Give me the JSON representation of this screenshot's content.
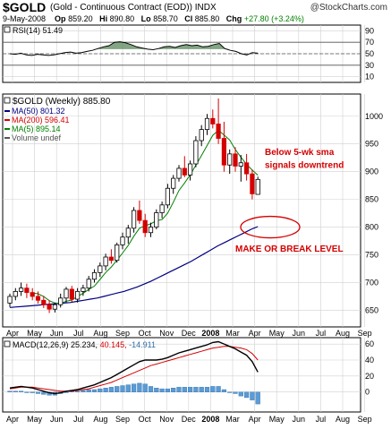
{
  "header": {
    "symbol": "$GOLD",
    "name": "(Gold - Continuous Contract (EOD))",
    "exchange": "INDX",
    "watermark": "@StockCharts.com",
    "date": "9-May-2008",
    "open_label": "Op",
    "open": "859.20",
    "high_label": "Hi",
    "high": "890.80",
    "low_label": "Lo",
    "low": "858.70",
    "close_label": "Cl",
    "close": "885.80",
    "change_label": "Chg",
    "change": "+27.80 (+3.24%)"
  },
  "colors": {
    "up": "#ffffff",
    "down": "#d40000",
    "ma50": "#000080",
    "ma200": "#d40000",
    "ma5": "#008000",
    "rsi_fill": "#4f7f4f",
    "macd_hist": "#5b9bd5",
    "annotation": "#d40000",
    "grid": "#d0d0d0"
  },
  "chart_data": [
    {
      "type": "line",
      "panel": "rsi",
      "legend": "RSI(14) 51.49",
      "y_ticks": [
        10,
        30,
        50,
        70,
        90
      ],
      "ylim": [
        0,
        100
      ],
      "reference_lines": [
        30,
        50,
        70
      ],
      "values": [
        50,
        49,
        51,
        48,
        47,
        49,
        48,
        47,
        48,
        50,
        52,
        53,
        51,
        52,
        54,
        56,
        59,
        62,
        64,
        70,
        71,
        69,
        66,
        62,
        60,
        58,
        57,
        59,
        62,
        63,
        61,
        64,
        66,
        64,
        65,
        62,
        63,
        66,
        68,
        59,
        56,
        54,
        50,
        48,
        52,
        51
      ]
    },
    {
      "type": "candlestick",
      "panel": "price",
      "legend": {
        "title": "$GOLD (Weekly) 885.80",
        "ma50": "MA(50) 801.32",
        "ma200": "MA(200) 596.41",
        "ma5": "MA(5) 895.14",
        "volume": "Volume undef"
      },
      "x_labels": [
        "Apr",
        "May",
        "Jun",
        "Jul",
        "Aug",
        "Sep",
        "Oct",
        "Nov",
        "Dec",
        "2008",
        "Mar",
        "Apr",
        "May",
        "Jun",
        "Jul",
        "Aug",
        "Sep"
      ],
      "y_ticks": [
        650,
        700,
        750,
        800,
        850,
        900,
        950,
        1000
      ],
      "ylim": [
        620,
        1040
      ],
      "ohlc": [
        [
          663,
          680,
          656,
          675
        ],
        [
          675,
          690,
          668,
          684
        ],
        [
          684,
          700,
          676,
          690
        ],
        [
          690,
          698,
          672,
          682
        ],
        [
          682,
          690,
          668,
          675
        ],
        [
          675,
          684,
          662,
          668
        ],
        [
          668,
          676,
          654,
          660
        ],
        [
          660,
          668,
          645,
          652
        ],
        [
          652,
          664,
          646,
          660
        ],
        [
          660,
          680,
          655,
          672
        ],
        [
          672,
          692,
          664,
          688
        ],
        [
          688,
          694,
          665,
          670
        ],
        [
          670,
          690,
          664,
          684
        ],
        [
          684,
          696,
          676,
          690
        ],
        [
          690,
          712,
          684,
          706
        ],
        [
          706,
          724,
          700,
          718
        ],
        [
          718,
          736,
          710,
          730
        ],
        [
          730,
          752,
          722,
          746
        ],
        [
          746,
          760,
          734,
          740
        ],
        [
          740,
          772,
          736,
          768
        ],
        [
          768,
          790,
          760,
          782
        ],
        [
          782,
          804,
          770,
          798
        ],
        [
          798,
          836,
          790,
          830
        ],
        [
          830,
          848,
          806,
          812
        ],
        [
          812,
          824,
          782,
          790
        ],
        [
          790,
          808,
          782,
          800
        ],
        [
          800,
          832,
          796,
          826
        ],
        [
          826,
          846,
          816,
          840
        ],
        [
          840,
          878,
          834,
          870
        ],
        [
          870,
          894,
          860,
          888
        ],
        [
          888,
          912,
          882,
          906
        ],
        [
          906,
          928,
          890,
          894
        ],
        [
          894,
          920,
          884,
          914
        ],
        [
          914,
          964,
          908,
          956
        ],
        [
          956,
          984,
          946,
          976
        ],
        [
          976,
          1004,
          966,
          996
        ],
        [
          996,
          1012,
          978,
          986
        ],
        [
          986,
          1032,
          950,
          960
        ],
        [
          960,
          990,
          900,
          912
        ],
        [
          912,
          940,
          896,
          932
        ],
        [
          932,
          944,
          900,
          910
        ],
        [
          910,
          930,
          882,
          916
        ],
        [
          916,
          932,
          884,
          896
        ],
        [
          896,
          904,
          850,
          860
        ],
        [
          859,
          891,
          859,
          886
        ]
      ],
      "ma50": [
        655,
        656,
        657,
        658,
        659,
        660,
        661,
        662,
        663,
        664,
        666,
        668,
        670,
        672,
        675,
        678,
        681,
        684,
        688,
        692,
        697,
        702,
        708,
        714,
        720,
        726,
        732,
        738,
        745,
        752,
        759,
        766,
        772,
        778,
        784,
        790,
        796,
        801
      ],
      "annotations": [
        {
          "text": "Below 5-wk sma",
          "value": 930
        },
        {
          "text": "signals downtrend",
          "value": 900
        },
        {
          "text": "MAKE OR BREAK LEVEL",
          "value": 756
        }
      ]
    },
    {
      "type": "line",
      "panel": "macd",
      "legend": {
        "label": "MACD(12,26,9)",
        "macd": "25.234",
        "signal": "40.145",
        "histogram": "-14.911"
      },
      "y_ticks": [
        0,
        20,
        40,
        60
      ],
      "ylim": [
        -25,
        68
      ],
      "x_labels": [
        "Apr",
        "May",
        "Jun",
        "Jul",
        "Aug",
        "Sep",
        "Oct",
        "Nov",
        "Dec",
        "2008",
        "Mar",
        "Apr",
        "May",
        "Jun",
        "Jul",
        "Aug",
        "Sep"
      ],
      "macd": [
        5,
        6,
        7,
        6,
        5,
        3,
        1,
        -1,
        -2,
        -1,
        1,
        2,
        3,
        5,
        7,
        9,
        12,
        15,
        18,
        22,
        26,
        30,
        34,
        38,
        40,
        40,
        40,
        41,
        43,
        46,
        49,
        51,
        53,
        55,
        57,
        59,
        62,
        63,
        60,
        57,
        54,
        50,
        46,
        38,
        25
      ],
      "signal": [
        4,
        5,
        6,
        6,
        6,
        5,
        4,
        3,
        2,
        1,
        1,
        1,
        2,
        3,
        4,
        6,
        8,
        10,
        12,
        15,
        18,
        21,
        24,
        27,
        30,
        33,
        35,
        37,
        39,
        41,
        43,
        45,
        47,
        49,
        51,
        53,
        55,
        56,
        57,
        57,
        56,
        55,
        53,
        48,
        40
      ],
      "histogram": [
        1,
        1,
        1,
        0,
        -1,
        -2,
        -3,
        -4,
        -4,
        -2,
        0,
        1,
        1,
        2,
        3,
        3,
        4,
        5,
        6,
        7,
        8,
        9,
        10,
        11,
        10,
        7,
        5,
        4,
        4,
        5,
        6,
        6,
        6,
        6,
        6,
        6,
        7,
        7,
        3,
        0,
        -2,
        -5,
        -7,
        -10,
        -15
      ]
    }
  ]
}
